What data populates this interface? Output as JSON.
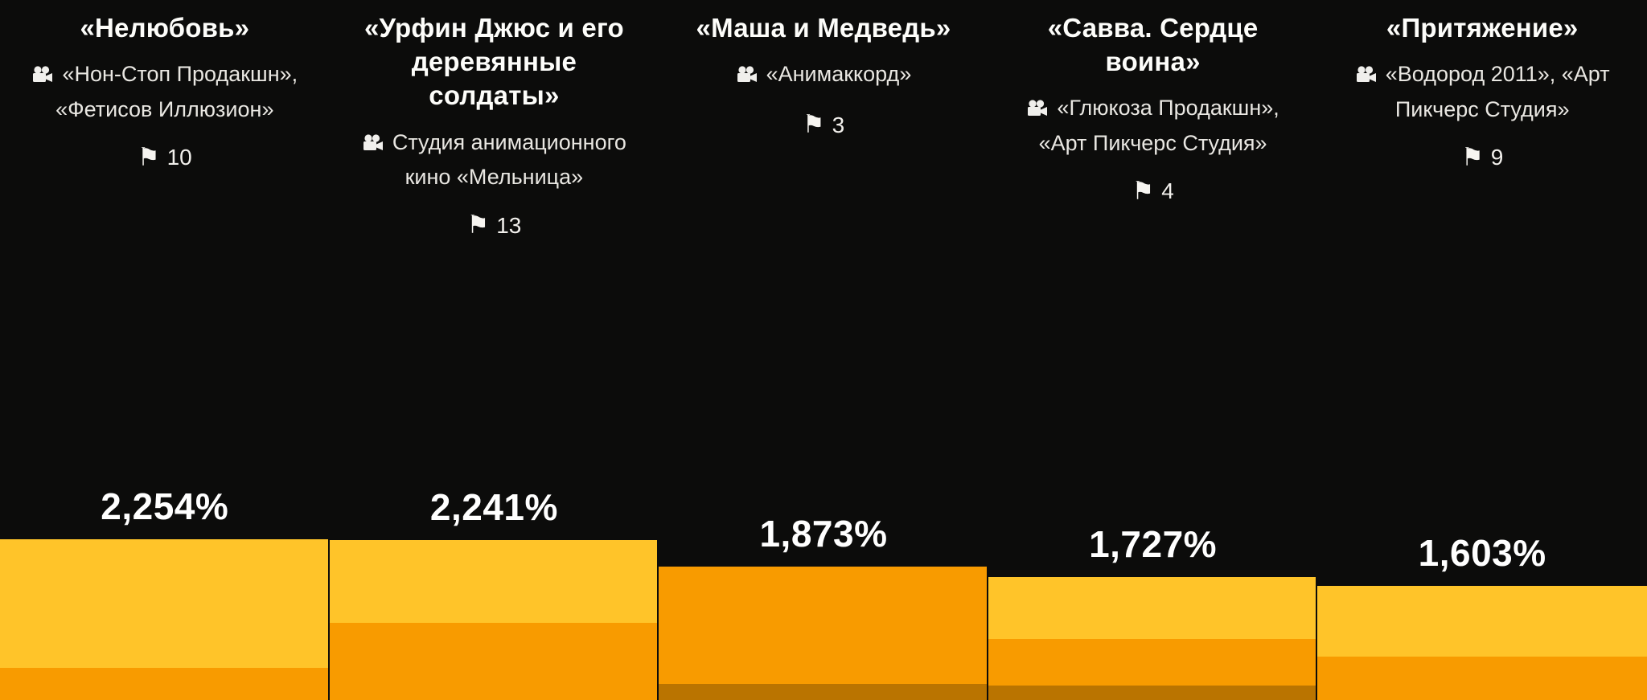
{
  "page": {
    "background": "#0c0c0b"
  },
  "icons": {
    "flag_glyph": "⚑",
    "camera": "movie-camera"
  },
  "columns": [
    {
      "title": "«Нелюбовь»",
      "studios": "«Нон-Стоп Продакшн», «Фетисов Иллюзион»",
      "flags": "10"
    },
    {
      "title": "«Урфин Джюс и его деревянные солдаты»",
      "studios": "Студия анимационного кино «Мельница»",
      "flags": "13"
    },
    {
      "title": "«Маша и Медведь»",
      "studios": "«Анимаккорд»",
      "flags": "3"
    },
    {
      "title": "«Савва. Сердце воина»",
      "studios": "«Глюкоза Продакшн», «Арт Пикчерс Студия»",
      "flags": "4"
    },
    {
      "title": "«Притяжение»",
      "studios": "«Водород 2011», «Арт Пикчерс Студия»",
      "flags": "9"
    }
  ],
  "chart_data": {
    "type": "bar",
    "title": "",
    "categories": [
      "«Нелюбовь»",
      "«Урфин Джюс и его деревянные солдаты»",
      "«Маша и Медведь»",
      "«Савва. Сердце воина»",
      "«Притяжение»"
    ],
    "values": [
      2254,
      2241,
      1873,
      1727,
      1603
    ],
    "value_labels": [
      "2,254%",
      "2,241%",
      "1,873%",
      "1,727%",
      "1,603%"
    ],
    "flag_counts": [
      10,
      13,
      3,
      4,
      9
    ],
    "unit": "%",
    "ylim": [
      0,
      2300
    ],
    "grid": false,
    "legend": "none",
    "bars_flush": true,
    "palette": {
      "yellow": "#FFC429",
      "orange": "#F89B00",
      "dark": "#BA7400"
    },
    "segments": [
      [
        [
          "yellow",
          0.8
        ],
        [
          "orange",
          0.2
        ]
      ],
      [
        [
          "yellow",
          0.52
        ],
        [
          "orange",
          0.48
        ]
      ],
      [
        [
          "orange",
          0.88
        ],
        [
          "dark",
          0.12
        ]
      ],
      [
        [
          "yellow",
          0.5
        ],
        [
          "orange",
          0.38
        ],
        [
          "dark",
          0.12
        ]
      ],
      [
        [
          "yellow",
          0.62
        ],
        [
          "orange",
          0.38
        ]
      ]
    ]
  }
}
